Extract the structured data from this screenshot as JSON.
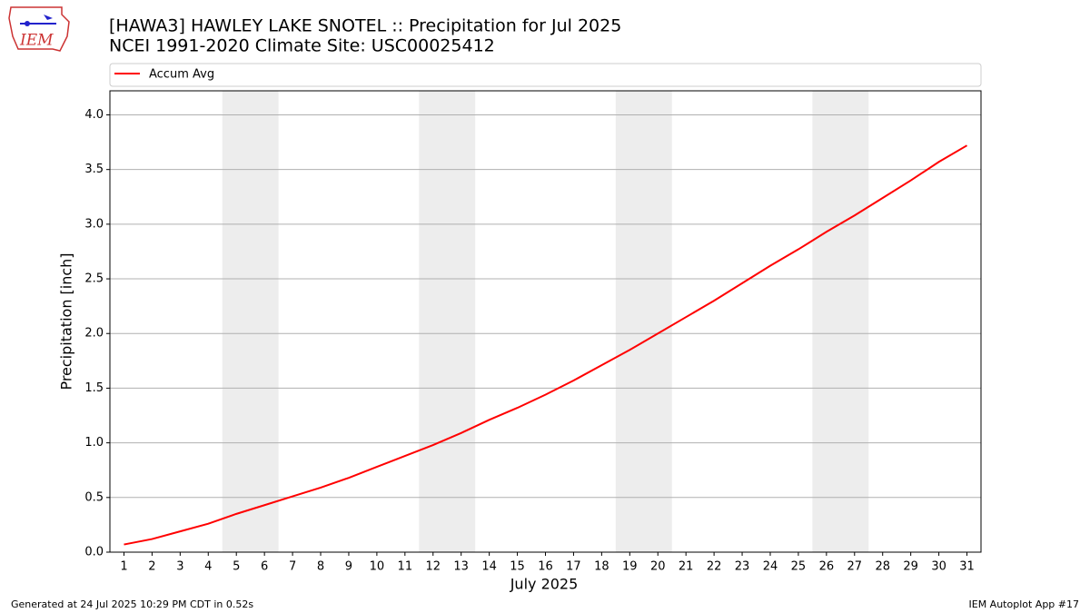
{
  "chart_data": {
    "type": "line",
    "title": "[HAWA3] HAWLEY LAKE SNOTEL :: Precipitation for Jul 2025",
    "subtitle": "NCEI 1991-2020 Climate Site: USC00025412",
    "logo_text": "IEM",
    "x_label": "July 2025",
    "y_label": "Precipitation [inch]",
    "footer_left": "Generated at 24 Jul 2025 10:29 PM CDT in 0.52s",
    "footer_right": "IEM Autoplot App #17",
    "x": [
      1,
      2,
      3,
      4,
      5,
      6,
      7,
      8,
      9,
      10,
      11,
      12,
      13,
      14,
      15,
      16,
      17,
      18,
      19,
      20,
      21,
      22,
      23,
      24,
      25,
      26,
      27,
      28,
      29,
      30,
      31
    ],
    "series": [
      {
        "name": "Accum Avg",
        "color": "#ff0000",
        "values": [
          0.07,
          0.12,
          0.19,
          0.26,
          0.35,
          0.43,
          0.51,
          0.59,
          0.68,
          0.78,
          0.88,
          0.98,
          1.09,
          1.21,
          1.32,
          1.44,
          1.57,
          1.71,
          1.85,
          2.0,
          2.15,
          2.3,
          2.46,
          2.62,
          2.77,
          2.93,
          3.08,
          3.24,
          3.4,
          3.57,
          3.72
        ]
      }
    ],
    "xlim": [
      0.5,
      31.5
    ],
    "xticks": [
      1,
      2,
      3,
      4,
      5,
      6,
      7,
      8,
      9,
      10,
      11,
      12,
      13,
      14,
      15,
      16,
      17,
      18,
      19,
      20,
      21,
      22,
      23,
      24,
      25,
      26,
      27,
      28,
      29,
      30,
      31
    ],
    "ylim": [
      0,
      4.22
    ],
    "yticks": [
      {
        "value": 0,
        "label": "0.0"
      },
      {
        "value": 0.5,
        "label": "0.5"
      },
      {
        "value": 1,
        "label": "1.0"
      },
      {
        "value": 1.5,
        "label": "1.5"
      },
      {
        "value": 2,
        "label": "2.0"
      },
      {
        "value": 2.5,
        "label": "2.5"
      },
      {
        "value": 3,
        "label": "3.0"
      },
      {
        "value": 3.5,
        "label": "3.5"
      },
      {
        "value": 4,
        "label": "4.0"
      }
    ],
    "grid": "y",
    "weekend_shading": [
      [
        4.5,
        6.5
      ],
      [
        11.5,
        13.5
      ],
      [
        18.5,
        20.5
      ],
      [
        25.5,
        27.5
      ]
    ],
    "shading_color": "#ededed",
    "legend": "top"
  }
}
